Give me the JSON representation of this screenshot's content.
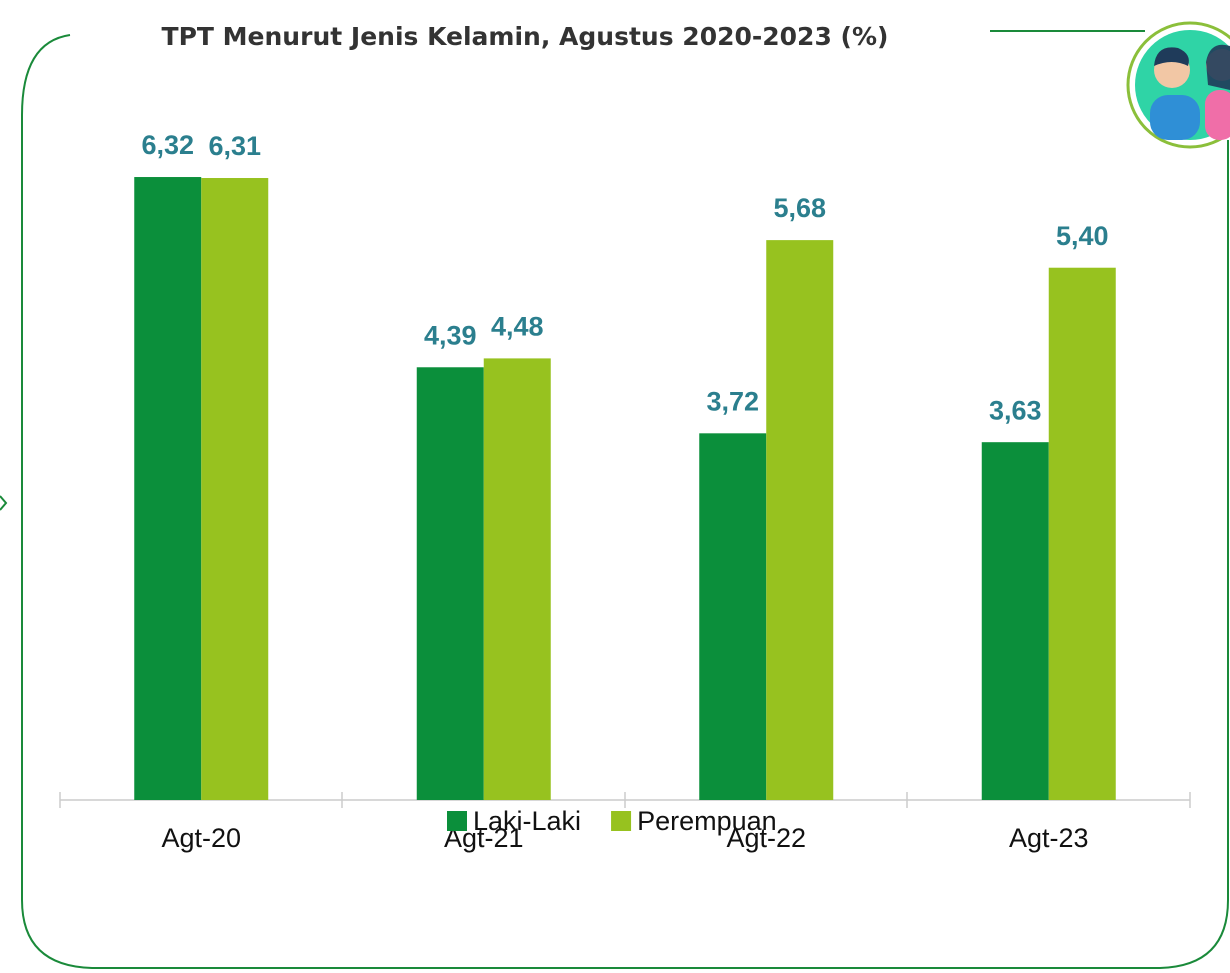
{
  "chart_data": {
    "type": "bar",
    "title": "TPT Menurut Jenis Kelamin, Agustus 2020-2023 (%)",
    "categories": [
      "Agt-20",
      "Agt-21",
      "Agt-22",
      "Agt-23"
    ],
    "series": [
      {
        "name": "Laki-Laki",
        "color": "#0b8f3b",
        "values": [
          6.32,
          4.39,
          3.72,
          3.63
        ],
        "value_labels": [
          "6,32",
          "4,39",
          "3,72",
          "3,63"
        ]
      },
      {
        "name": "Perempuan",
        "color": "#97c21f",
        "values": [
          6.31,
          4.48,
          5.68,
          5.4
        ],
        "value_labels": [
          "6,31",
          "4,48",
          "5,68",
          "5,40"
        ]
      }
    ],
    "ylim": [
      0,
      7
    ],
    "legend": "bottom"
  }
}
